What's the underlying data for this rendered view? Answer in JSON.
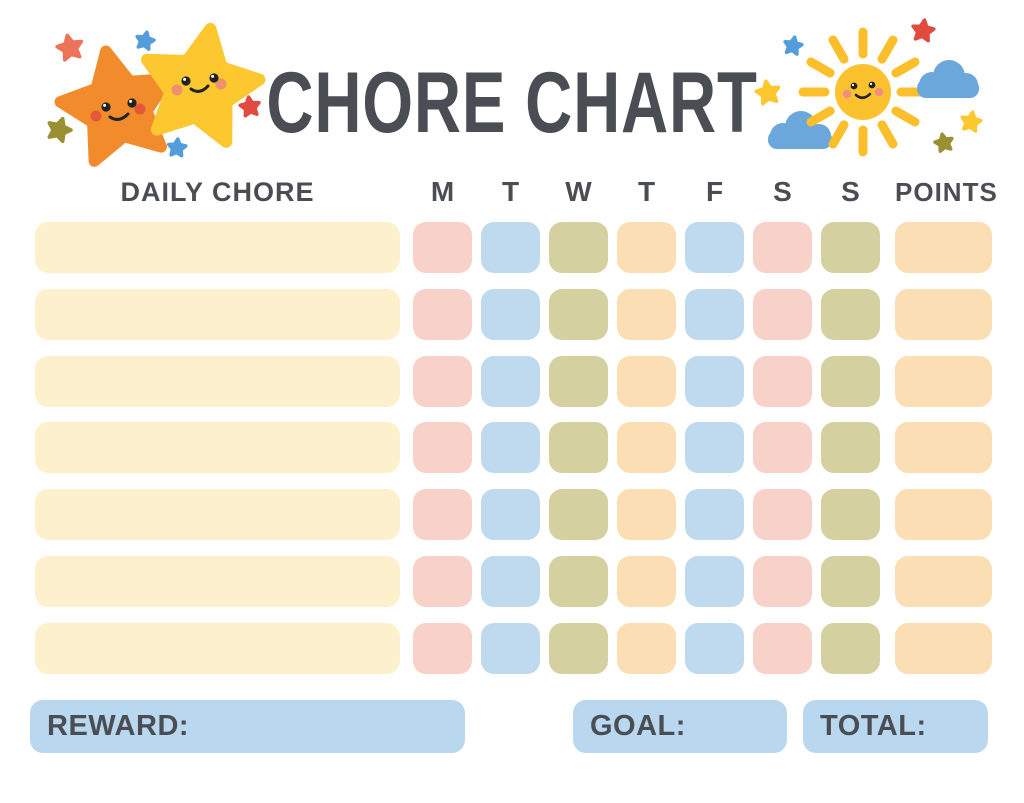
{
  "title": "CHORE CHART",
  "palette": {
    "ink": "#4a4e54",
    "cream": "#fdf1cd",
    "pink": "#f8d1c9",
    "blue": "#bfd9ee",
    "olive": "#d4d0a0",
    "peach": "#fcdeb4",
    "footerBlue": "#b9d7ee",
    "starOrange": "#f18b2b",
    "starYellow": "#fcc72f",
    "starCoral": "#ec7258",
    "starRed": "#e14a3f",
    "starBlue": "#549ddb",
    "starOlive": "#9a8f33",
    "sun": "#fbc12e",
    "ray": "#fbbf2c",
    "cloud": "#6ca7db",
    "cheekRed": "#e2593a",
    "cheekOrange": "#f0906e",
    "cheekPink": "#ee8f83",
    "eye": "#222222"
  },
  "icons": {
    "left_illustration": "two-smiling-stars",
    "right_illustration": "smiling-sun-with-clouds-and-stars"
  },
  "table": {
    "chore_header": "DAILY CHORE",
    "day_headers": [
      "M",
      "T",
      "W",
      "T",
      "F",
      "S",
      "S"
    ],
    "points_header": "POINTS",
    "rows": [
      {
        "chore": "",
        "days": [
          "pink",
          "blue",
          "olive",
          "peach",
          "blue",
          "pink",
          "olive"
        ],
        "points": "peach",
        "points_value": ""
      },
      {
        "chore": "",
        "days": [
          "pink",
          "blue",
          "olive",
          "peach",
          "blue",
          "pink",
          "olive"
        ],
        "points": "peach",
        "points_value": ""
      },
      {
        "chore": "",
        "days": [
          "pink",
          "blue",
          "olive",
          "peach",
          "blue",
          "pink",
          "olive"
        ],
        "points": "peach",
        "points_value": ""
      },
      {
        "chore": "",
        "days": [
          "pink",
          "blue",
          "olive",
          "peach",
          "blue",
          "pink",
          "olive"
        ],
        "points": "peach",
        "points_value": ""
      },
      {
        "chore": "",
        "days": [
          "pink",
          "blue",
          "olive",
          "peach",
          "blue",
          "pink",
          "olive"
        ],
        "points": "peach",
        "points_value": ""
      },
      {
        "chore": "",
        "days": [
          "pink",
          "blue",
          "olive",
          "peach",
          "blue",
          "pink",
          "olive"
        ],
        "points": "peach",
        "points_value": ""
      },
      {
        "chore": "",
        "days": [
          "pink",
          "blue",
          "olive",
          "peach",
          "blue",
          "pink",
          "olive"
        ],
        "points": "peach",
        "points_value": ""
      }
    ]
  },
  "footer": {
    "reward_label": "REWARD:",
    "reward_value": "",
    "goal_label": "GOAL:",
    "goal_value": "",
    "total_label": "TOTAL:",
    "total_value": ""
  }
}
